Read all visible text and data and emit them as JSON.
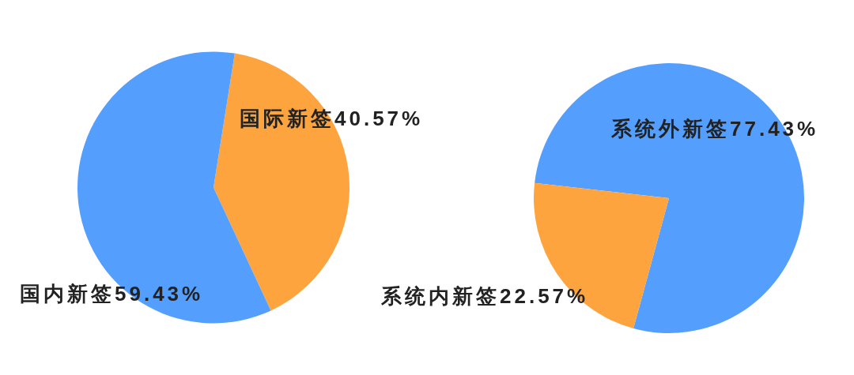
{
  "chart_data": [
    {
      "type": "pie",
      "categories": [
        "国际新签",
        "国内新签"
      ],
      "values": [
        40.57,
        59.43
      ],
      "colors": [
        "#fda43f",
        "#549ffd"
      ],
      "value_labels": [
        "40.57%",
        "59.43%"
      ]
    },
    {
      "type": "pie",
      "categories": [
        "系统外新签",
        "系统内新签"
      ],
      "values": [
        77.43,
        22.57
      ],
      "colors": [
        "#549ffd",
        "#fda43f"
      ],
      "value_labels": [
        "77.43%",
        "22.57%"
      ]
    }
  ]
}
